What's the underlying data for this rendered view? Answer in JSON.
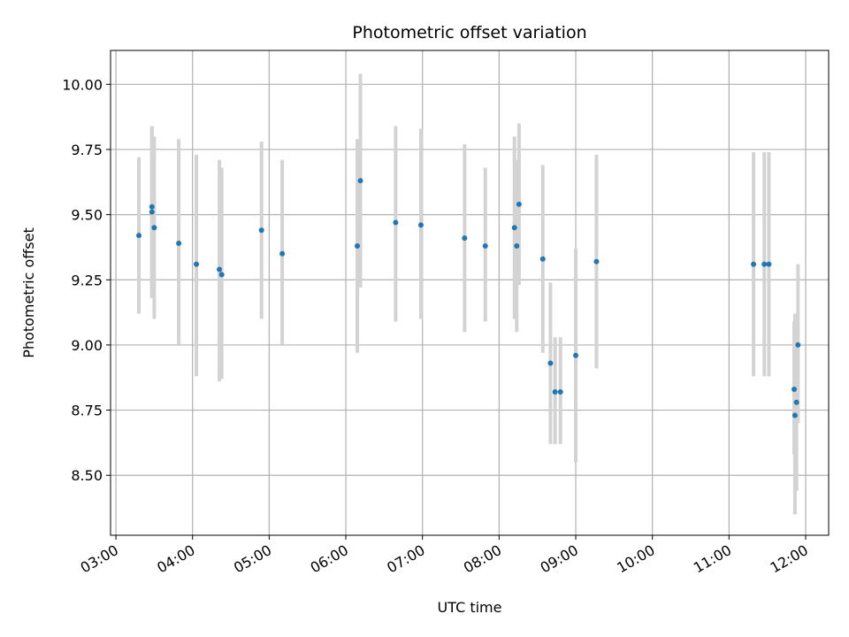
{
  "chart_data": {
    "type": "scatter",
    "title": "Photometric offset variation",
    "xlabel": "UTC time",
    "ylabel": "Photometric offset",
    "x_unit": "hours (UTC)",
    "xlim": [
      2.93,
      12.3
    ],
    "ylim": [
      8.27,
      10.13
    ],
    "x_ticks": [
      3,
      4,
      5,
      6,
      7,
      8,
      9,
      10,
      11,
      12
    ],
    "x_tick_labels": [
      "03:00",
      "04:00",
      "05:00",
      "06:00",
      "07:00",
      "08:00",
      "09:00",
      "10:00",
      "11:00",
      "12:00"
    ],
    "y_ticks": [
      8.5,
      8.75,
      9.0,
      9.25,
      9.5,
      9.75,
      10.0
    ],
    "y_tick_labels": [
      "8.50",
      "8.75",
      "9.00",
      "9.25",
      "9.50",
      "9.75",
      "10.00"
    ],
    "grid": true,
    "colors": {
      "point": "#1f77b4",
      "errorbar": "#d3d3d3",
      "grid": "#b0b0b0"
    },
    "points": [
      {
        "x": 3.3,
        "y": 9.42,
        "yerr_low": 9.12,
        "yerr_high": 9.72
      },
      {
        "x": 3.47,
        "y": 9.51,
        "yerr_low": 9.18,
        "yerr_high": 9.84
      },
      {
        "x": 3.47,
        "y": 9.53,
        "yerr_low": 9.18,
        "yerr_high": 9.84
      },
      {
        "x": 3.5,
        "y": 9.45,
        "yerr_low": 9.1,
        "yerr_high": 9.8
      },
      {
        "x": 3.82,
        "y": 9.39,
        "yerr_low": 9.0,
        "yerr_high": 9.79
      },
      {
        "x": 4.05,
        "y": 9.31,
        "yerr_low": 8.88,
        "yerr_high": 9.73
      },
      {
        "x": 4.35,
        "y": 9.29,
        "yerr_low": 8.86,
        "yerr_high": 9.71
      },
      {
        "x": 4.38,
        "y": 9.27,
        "yerr_low": 8.87,
        "yerr_high": 9.68
      },
      {
        "x": 4.9,
        "y": 9.44,
        "yerr_low": 9.1,
        "yerr_high": 9.78
      },
      {
        "x": 5.17,
        "y": 9.35,
        "yerr_low": 9.0,
        "yerr_high": 9.71
      },
      {
        "x": 6.15,
        "y": 9.38,
        "yerr_low": 8.97,
        "yerr_high": 9.79
      },
      {
        "x": 6.19,
        "y": 9.63,
        "yerr_low": 9.22,
        "yerr_high": 10.04
      },
      {
        "x": 6.65,
        "y": 9.47,
        "yerr_low": 9.09,
        "yerr_high": 9.84
      },
      {
        "x": 6.98,
        "y": 9.46,
        "yerr_low": 9.1,
        "yerr_high": 9.83
      },
      {
        "x": 7.55,
        "y": 9.41,
        "yerr_low": 9.05,
        "yerr_high": 9.77
      },
      {
        "x": 7.82,
        "y": 9.38,
        "yerr_low": 9.09,
        "yerr_high": 9.68
      },
      {
        "x": 8.2,
        "y": 9.45,
        "yerr_low": 9.1,
        "yerr_high": 9.8
      },
      {
        "x": 8.23,
        "y": 9.38,
        "yerr_low": 9.05,
        "yerr_high": 9.71
      },
      {
        "x": 8.26,
        "y": 9.54,
        "yerr_low": 9.23,
        "yerr_high": 9.85
      },
      {
        "x": 8.57,
        "y": 9.33,
        "yerr_low": 8.97,
        "yerr_high": 9.69
      },
      {
        "x": 8.67,
        "y": 8.93,
        "yerr_low": 8.62,
        "yerr_high": 9.24
      },
      {
        "x": 8.73,
        "y": 8.82,
        "yerr_low": 8.62,
        "yerr_high": 9.03
      },
      {
        "x": 8.8,
        "y": 8.82,
        "yerr_low": 8.62,
        "yerr_high": 9.03
      },
      {
        "x": 9.0,
        "y": 8.96,
        "yerr_low": 8.55,
        "yerr_high": 9.37
      },
      {
        "x": 9.27,
        "y": 9.32,
        "yerr_low": 8.91,
        "yerr_high": 9.73
      },
      {
        "x": 11.32,
        "y": 9.31,
        "yerr_low": 8.88,
        "yerr_high": 9.74
      },
      {
        "x": 11.46,
        "y": 9.31,
        "yerr_low": 8.88,
        "yerr_high": 9.74
      },
      {
        "x": 11.52,
        "y": 9.31,
        "yerr_low": 8.88,
        "yerr_high": 9.74
      },
      {
        "x": 11.85,
        "y": 8.83,
        "yerr_low": 8.58,
        "yerr_high": 9.09
      },
      {
        "x": 11.86,
        "y": 8.73,
        "yerr_low": 8.35,
        "yerr_high": 9.12
      },
      {
        "x": 11.88,
        "y": 8.78,
        "yerr_low": 8.44,
        "yerr_high": 9.12
      },
      {
        "x": 11.9,
        "y": 9.0,
        "yerr_low": 8.7,
        "yerr_high": 9.31
      }
    ]
  }
}
